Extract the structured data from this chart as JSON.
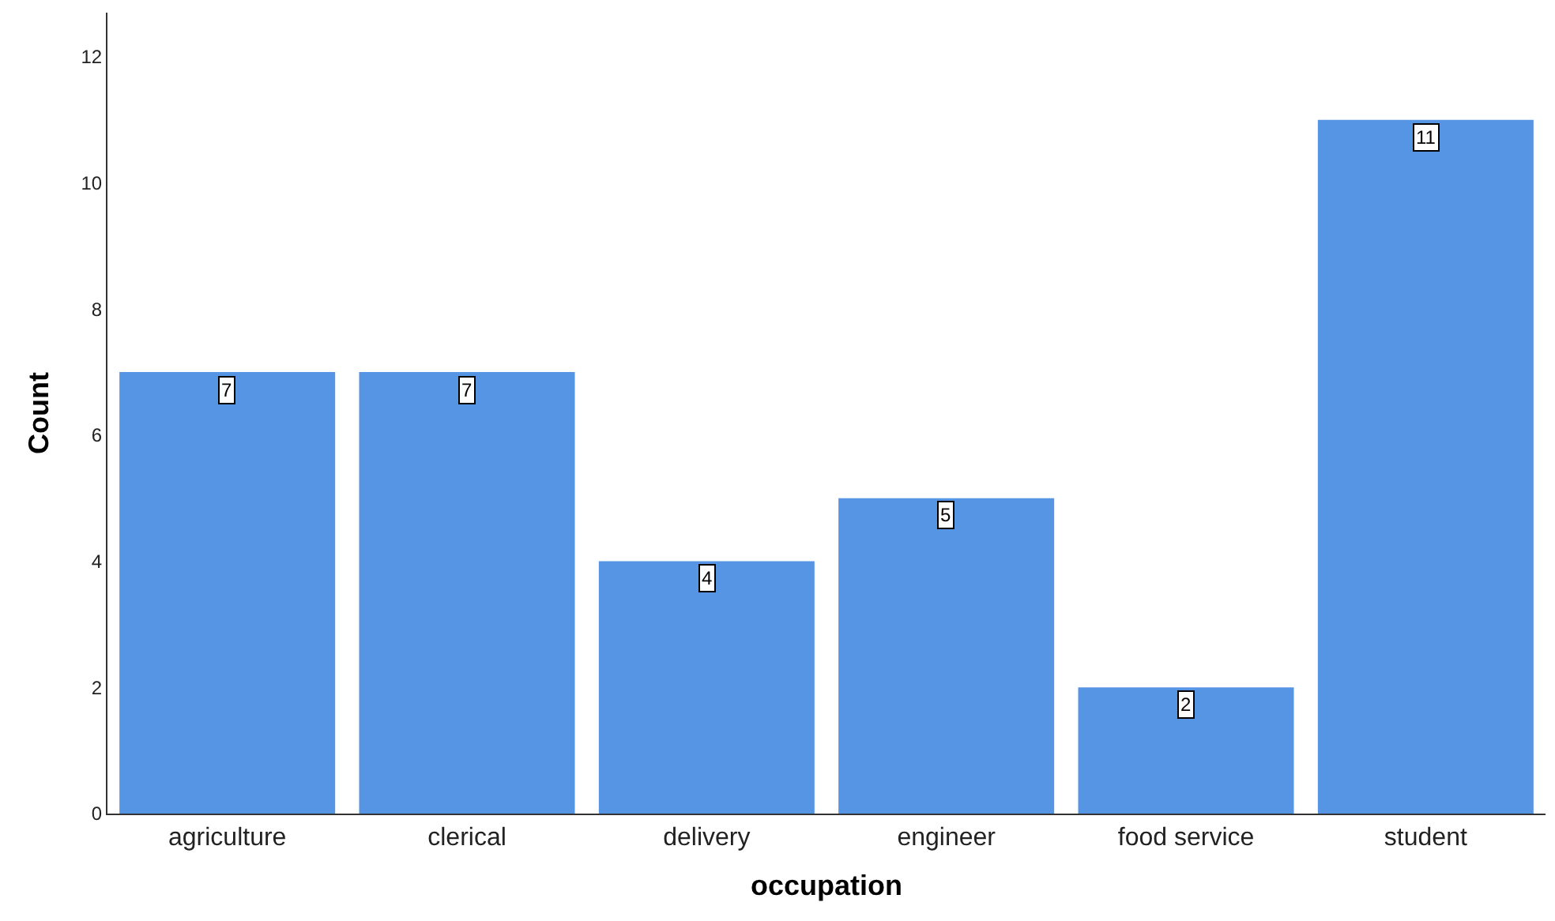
{
  "chart_data": {
    "type": "bar",
    "xlabel": "occupation",
    "ylabel": "Count",
    "categories": [
      "agriculture",
      "clerical",
      "delivery",
      "engineer",
      "food service",
      "student"
    ],
    "values": [
      7,
      7,
      4,
      5,
      2,
      11
    ],
    "color": "#5694e4",
    "ylim": [
      0,
      12.7
    ],
    "yticks": [
      0,
      2,
      4,
      6,
      8,
      10,
      12
    ],
    "data_labels": true
  }
}
